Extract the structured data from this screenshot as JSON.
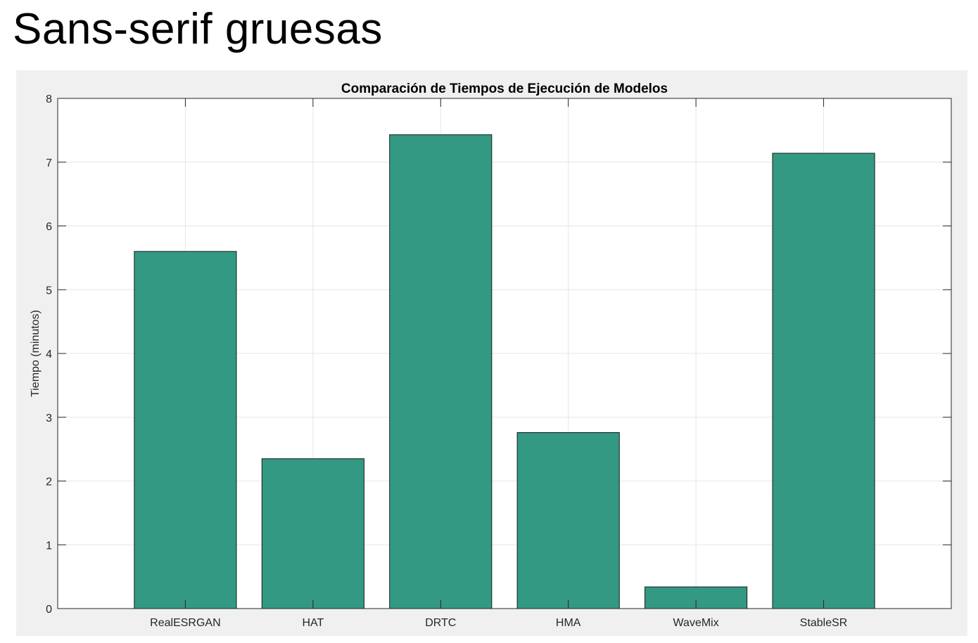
{
  "page": {
    "heading": "Sans-serif gruesas"
  },
  "chart_data": {
    "type": "bar",
    "title": "Comparación de Tiempos de Ejecución de Modelos",
    "xlabel": "",
    "ylabel": "Tiempo (minutos)",
    "categories": [
      "RealESRGAN",
      "HAT",
      "DRTC",
      "HMA",
      "WaveMix",
      "StableSR"
    ],
    "values": [
      5.6,
      2.35,
      7.43,
      2.76,
      0.34,
      7.14
    ],
    "ylim": [
      0,
      8
    ],
    "yticks": [
      0,
      1,
      2,
      3,
      4,
      5,
      6,
      7,
      8
    ],
    "xlim": [
      0,
      7
    ],
    "grid": true,
    "legend": "none",
    "colors": {
      "bar_fill": "#339983",
      "bar_edge": "#1a1a1a",
      "axes_background": "#ffffff",
      "figure_background": "#f0f0f0",
      "grid": "#e6e6e6",
      "axis": "#262626"
    }
  }
}
